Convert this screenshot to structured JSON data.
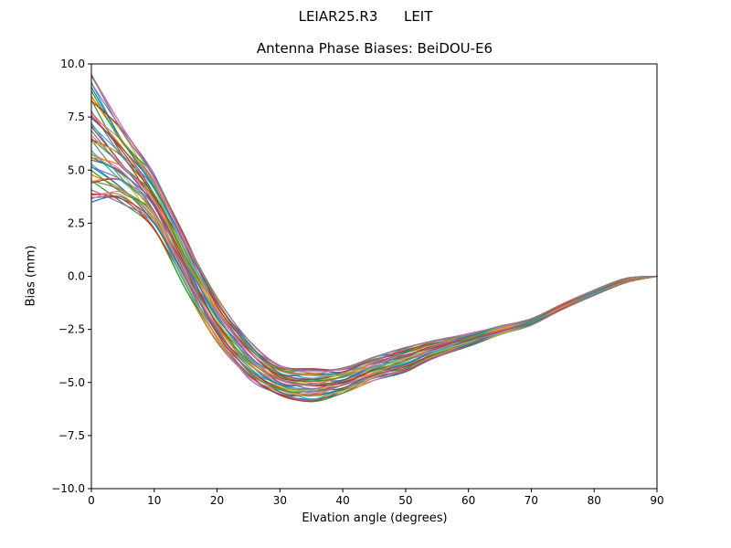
{
  "chart_data": {
    "type": "line",
    "suptitle": "LEIAR25.R3      LEIT",
    "title": "Antenna Phase Biases: BeiDOU-E6",
    "xlabel": "Elvation angle (degrees)",
    "ylabel": "Bias (mm)",
    "xlim": [
      0,
      90
    ],
    "ylim": [
      -10.0,
      10.0
    ],
    "x_ticks": [
      0,
      10,
      20,
      30,
      40,
      50,
      60,
      70,
      80,
      90
    ],
    "y_ticks": [
      -10.0,
      -7.5,
      -5.0,
      -2.5,
      0.0,
      2.5,
      5.0,
      7.5,
      10.0
    ],
    "grid": false,
    "legend": "none",
    "background": "#ffffff",
    "axis_color": "#000000",
    "bundle": {
      "description": "Dense bundle of per-satellite phase-bias curves. All curves start between ~3.5 and ~9.5 mm at 0 deg elevation, descend steeply to a minimum of about -4.4 to -5.9 mm near 35 deg, then rise smoothly and converge to 0.0 mm at 90 deg.",
      "n_lines": 48,
      "x": [
        0,
        5,
        10,
        15,
        20,
        25,
        30,
        35,
        40,
        45,
        50,
        55,
        60,
        65,
        70,
        75,
        80,
        85,
        90
      ],
      "envelope_upper": [
        9.5,
        7.0,
        4.8,
        1.8,
        -1.0,
        -3.0,
        -4.2,
        -4.35,
        -4.3,
        -3.8,
        -3.35,
        -3.0,
        -2.7,
        -2.35,
        -2.0,
        -1.3,
        -0.65,
        -0.1,
        0.0
      ],
      "envelope_lower": [
        3.5,
        3.4,
        2.2,
        -0.6,
        -3.1,
        -4.8,
        -5.6,
        -5.9,
        -5.5,
        -4.9,
        -4.5,
        -3.8,
        -3.3,
        -2.75,
        -2.3,
        -1.55,
        -0.9,
        -0.3,
        0.0
      ],
      "mean": [
        6.5,
        5.2,
        3.5,
        0.6,
        -2.05,
        -3.9,
        -4.9,
        -5.1,
        -4.9,
        -4.35,
        -3.9,
        -3.4,
        -3.0,
        -2.55,
        -2.15,
        -1.4,
        -0.8,
        -0.2,
        0.0
      ]
    },
    "palette": [
      "#1f77b4",
      "#ff7f0e",
      "#2ca02c",
      "#d62728",
      "#9467bd",
      "#8c564b",
      "#e377c2",
      "#7f7f7f",
      "#bcbd22",
      "#17becf"
    ]
  }
}
